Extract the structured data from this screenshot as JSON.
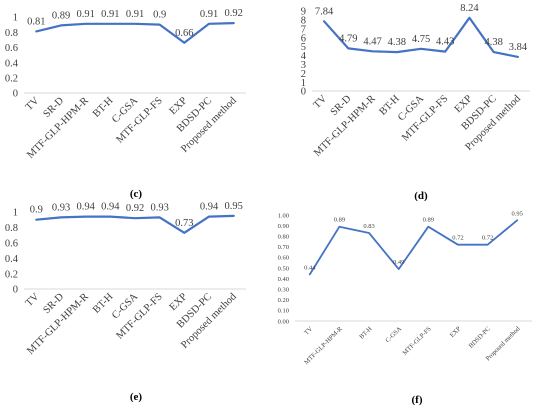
{
  "figure": {
    "line_color": "#4472C4",
    "axis_color": "#d9d9d9",
    "text_color": "#404040"
  },
  "chart_data": [
    {
      "id": "c",
      "type": "line",
      "panel_label": "(c)",
      "categories": [
        "TV",
        "SR-D",
        "MTF-GLP-HPM-R",
        "BT-H",
        "C-GSA",
        "MTF-GLP-FS",
        "EXP",
        "BDSD-PC",
        "Proposed method"
      ],
      "values": [
        0.81,
        0.89,
        0.91,
        0.91,
        0.91,
        0.9,
        0.66,
        0.91,
        0.92
      ],
      "data_labels": [
        "0.81",
        "0.89",
        "0.91",
        "0.91",
        "0.91",
        "0.9",
        "0.66",
        "0.91",
        "0.92"
      ],
      "yticks": [
        0,
        0.2,
        0.4,
        0.6,
        0.8,
        1
      ],
      "ytick_labels": [
        "0",
        "0.2",
        "0.4",
        "0.6",
        "0.8",
        "1"
      ],
      "ylim": [
        0,
        1
      ],
      "grid": false,
      "legend": "none"
    },
    {
      "id": "d",
      "type": "line",
      "panel_label": "(d)",
      "categories": [
        "TV",
        "SR-D",
        "MTF-GLP-HPM-R",
        "BT-H",
        "C-GSA",
        "MTF-GLP-FS",
        "EXP",
        "BDSD-PC",
        "Proposed method"
      ],
      "values": [
        7.84,
        4.79,
        4.47,
        4.38,
        4.75,
        4.43,
        8.24,
        4.38,
        3.84
      ],
      "data_labels": [
        "7.84",
        "4.79",
        "4.47",
        "4.38",
        "4.75",
        "4.43",
        "8.24",
        "4.38",
        "3.84"
      ],
      "yticks": [
        0,
        1,
        2,
        3,
        4,
        5,
        6,
        7,
        8,
        9
      ],
      "ytick_labels": [
        "0",
        "1",
        "2",
        "3",
        "4",
        "5",
        "6",
        "7",
        "8",
        "9"
      ],
      "ylim": [
        0,
        9
      ],
      "grid": false,
      "legend": "none"
    },
    {
      "id": "e",
      "type": "line",
      "panel_label": "(e)",
      "categories": [
        "TV",
        "SR-D",
        "MTF-GLP-HPM-R",
        "BT-H",
        "C-GSA",
        "MTF-GLP-FS",
        "EXP",
        "BDSD-PC",
        "Proposed method"
      ],
      "values": [
        0.9,
        0.93,
        0.94,
        0.94,
        0.92,
        0.93,
        0.73,
        0.94,
        0.95
      ],
      "data_labels": [
        "0.9",
        "0.93",
        "0.94",
        "0.94",
        "0.92",
        "0.93",
        "0.73",
        "0.94",
        "0.95"
      ],
      "yticks": [
        0,
        0.2,
        0.4,
        0.6,
        0.8,
        1
      ],
      "ytick_labels": [
        "0",
        "0.2",
        "0.4",
        "0.6",
        "0.8",
        "1"
      ],
      "ylim": [
        0,
        1
      ],
      "grid": false,
      "legend": "none"
    },
    {
      "id": "f",
      "type": "line",
      "panel_label": "(f)",
      "categories": [
        "TV",
        "MTF-GLP-HPM-R",
        "BT-H",
        "C-GSA",
        "MTF-GLP-FS",
        "EXP",
        "BDSD-PC",
        "Proposed method"
      ],
      "values": [
        0.44,
        0.89,
        0.83,
        0.49,
        0.89,
        0.72,
        0.72,
        0.95
      ],
      "data_labels": [
        "0.44",
        "0.89",
        "0.83",
        "0.49",
        "0.89",
        "0.72",
        "0.72",
        "0.95"
      ],
      "yticks": [
        0,
        0.1,
        0.2,
        0.3,
        0.4,
        0.5,
        0.6,
        0.7,
        0.8,
        0.9,
        1
      ],
      "ytick_labels": [
        "0.00",
        "0.10",
        "0.20",
        "0.30",
        "0.40",
        "0.50",
        "0.60",
        "0.70",
        "0.80",
        "0.90",
        "1.00"
      ],
      "ylim": [
        0,
        1
      ],
      "grid": false,
      "legend": "none"
    }
  ]
}
